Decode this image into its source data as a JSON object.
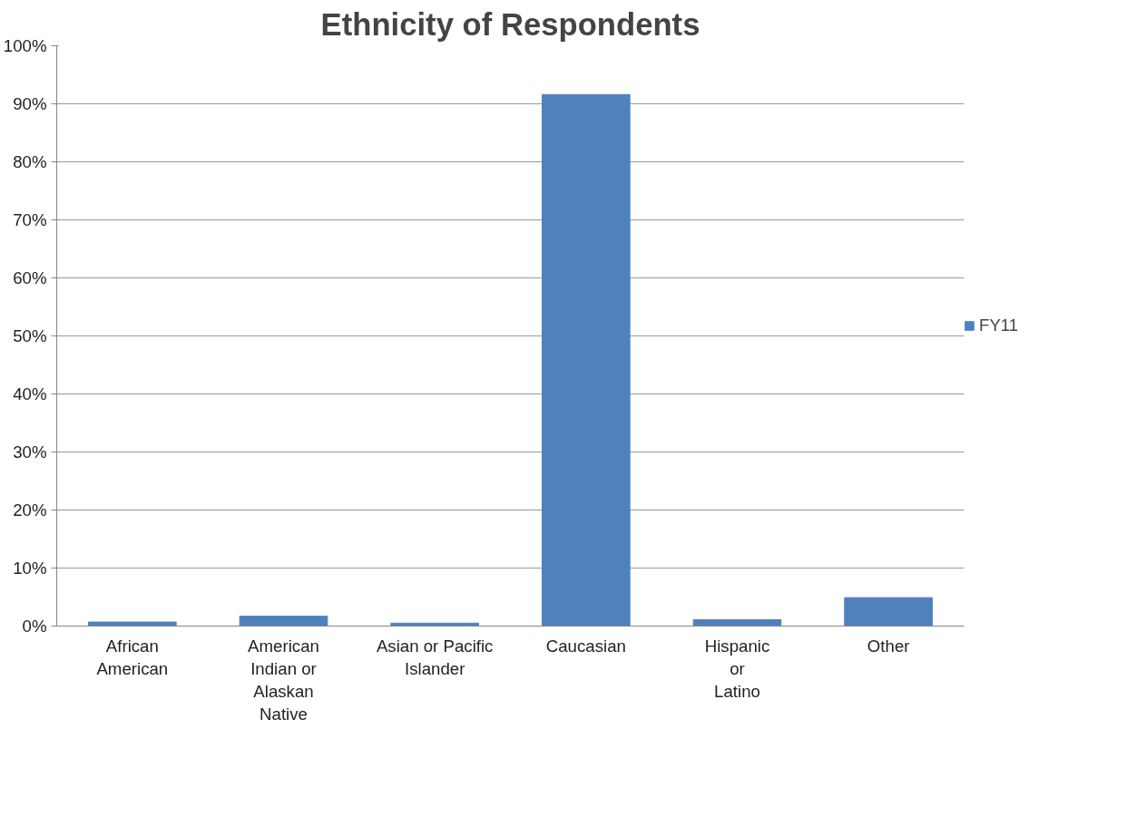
{
  "chart_data": {
    "type": "bar",
    "title": "Ethnicity of Respondents",
    "categories": [
      "African\nAmerican",
      "American\nIndian or\nAlaskan\nNative",
      "Asian or Pacific\nIslander",
      "Caucasian",
      "Hispanic\nor\nLatino",
      "Other"
    ],
    "series": [
      {
        "name": "FY11",
        "color": "#4f81bd",
        "values": [
          0.7,
          1.7,
          0.5,
          91.6,
          1.1,
          4.9
        ]
      }
    ],
    "ylim": [
      0,
      100
    ],
    "yticks": [
      {
        "value": 0,
        "label": "0%"
      },
      {
        "value": 10,
        "label": "10%"
      },
      {
        "value": 20,
        "label": "20%"
      },
      {
        "value": 30,
        "label": "30%"
      },
      {
        "value": 40,
        "label": "40%"
      },
      {
        "value": 50,
        "label": "50%"
      },
      {
        "value": 60,
        "label": "60%"
      },
      {
        "value": 70,
        "label": "70%"
      },
      {
        "value": 80,
        "label": "80%"
      },
      {
        "value": 90,
        "label": "90%"
      },
      {
        "value": 100,
        "label": "100%"
      }
    ],
    "grid": "y",
    "legend": "right"
  }
}
